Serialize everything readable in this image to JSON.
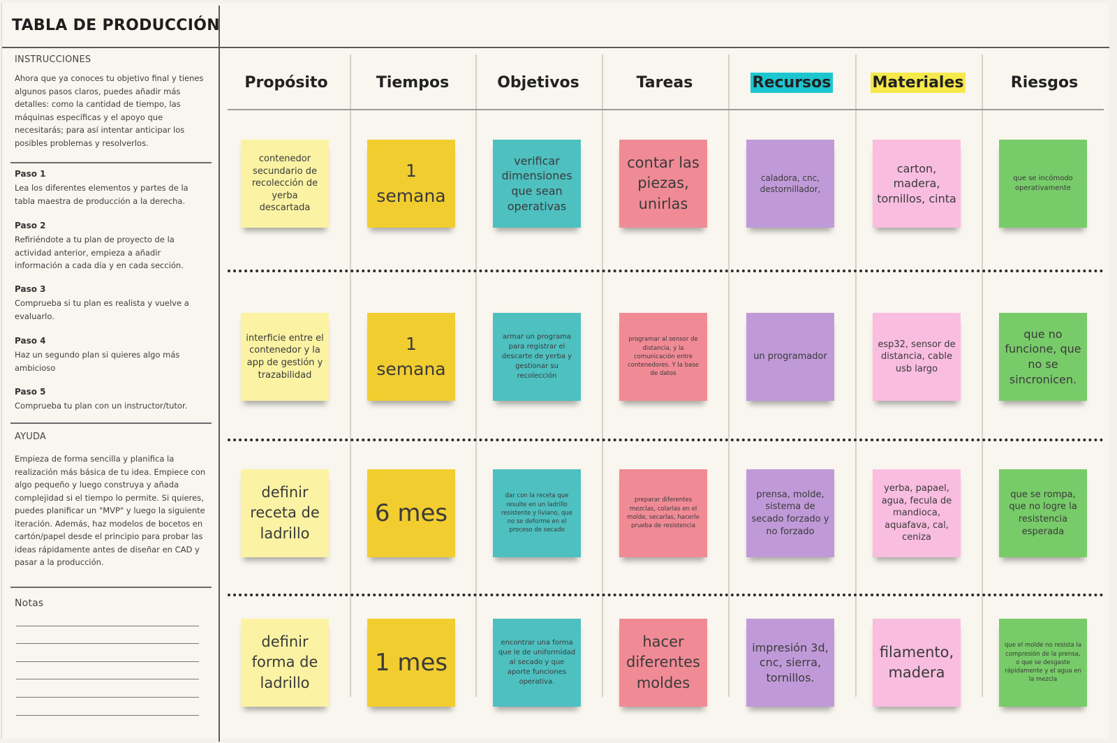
{
  "title": "TABLA DE PRODUCCIÓN",
  "left_panel": {
    "instructions_heading": "INSTRUCCIONES",
    "instructions_text": "Ahora que ya conoces tu objetivo final y tienes algunos pasos claros, puedes añadir más detalles: como la cantidad de tiempo, las máquinas específicas y el apoyo que necesitarás; para así intentar anticipar los posibles problemas y resolverlos.",
    "steps": [
      {
        "title": "Paso 1",
        "text": "Lea los diferentes elementos y partes de la tabla maestra de producción a la derecha."
      },
      {
        "title": "Paso 2",
        "text": "Refiriéndote a tu plan de proyecto de la actividad anterior, empieza a añadir información a cada día y en cada sección."
      },
      {
        "title": "Paso 3",
        "text": "Comprueba si tu plan es realista y vuelve a evaluarlo."
      },
      {
        "title": "Paso 4",
        "text": "Haz un segundo plan si quieres algo más ambicioso"
      },
      {
        "title": "Paso 5",
        "text": "Comprueba tu plan con un instructor/tutor."
      }
    ],
    "help_heading": "AYUDA",
    "help_text": "Empieza de forma sencilla y planifica la realización más básica de tu idea. Empiece con algo pequeño y luego construya y añada complejidad si el tiempo lo permite. Si quieres, puedes planificar un \"MVP\" y luego la siguiente iteración. Además, haz modelos de bocetos en cartón/papel desde el principio para probar las ideas rápidamente antes de diseñar en CAD y pasar a la producción.",
    "notes_heading": "Notas"
  },
  "columns": [
    {
      "label": "Propósito",
      "highlight": ""
    },
    {
      "label": "Tiempos",
      "highlight": ""
    },
    {
      "label": "Objetivos",
      "highlight": ""
    },
    {
      "label": "Tareas",
      "highlight": ""
    },
    {
      "label": "Recursos",
      "highlight": "#1cc6d1"
    },
    {
      "label": "Materiales",
      "highlight": "#f6e94a"
    },
    {
      "label": "Riesgos",
      "highlight": ""
    }
  ],
  "rows": [
    [
      {
        "text": "contenedor secundario de recolección de yerba descartada",
        "color": "yellow-pale"
      },
      {
        "text": "1 semana",
        "color": "yellow"
      },
      {
        "text": "verificar dimensiones que sean operativas",
        "color": "teal"
      },
      {
        "text": "contar las piezas, unirlas",
        "color": "red"
      },
      {
        "text": "caladora, cnc, destornillador,",
        "color": "purple"
      },
      {
        "text": "carton, madera, tornillos, cinta",
        "color": "pink"
      },
      {
        "text": "que se incómodo operativamente",
        "color": "green"
      }
    ],
    [
      {
        "text": "interficie entre el contenedor y la app de gestión y trazabilidad",
        "color": "yellow-pale"
      },
      {
        "text": "1 semana",
        "color": "yellow"
      },
      {
        "text": "armar un programa para registrar el descarte de yerba y gestionar su recolección",
        "color": "teal"
      },
      {
        "text": "programar al sensor de distancia, y la comunicación entre contenedores. Y la base de datos",
        "color": "red"
      },
      {
        "text": "un programador",
        "color": "purple"
      },
      {
        "text": "esp32, sensor de distancia, cable usb largo",
        "color": "pink"
      },
      {
        "text": "que no funcione, que no se sincronicen.",
        "color": "green"
      }
    ],
    [
      {
        "text": "definir receta de ladrillo",
        "color": "yellow-pale"
      },
      {
        "text": "6 mes",
        "color": "yellow"
      },
      {
        "text": "dar con la receta que resulte en un ladrillo resistente y liviano, que no se deforme en el proceso de secado",
        "color": "teal"
      },
      {
        "text": "preparar diferentes mezclas, colarlas en el molde, secarlas, hacerle prueba de resistencia",
        "color": "red"
      },
      {
        "text": "prensa, molde, sistema de secado forzado y no forzado",
        "color": "purple"
      },
      {
        "text": "yerba, papael, agua, fecula de mandioca, aquafava, cal, ceniza",
        "color": "pink"
      },
      {
        "text": "que se rompa, que no logre la resistencia esperada",
        "color": "green"
      }
    ],
    [
      {
        "text": "definir forma de ladrillo",
        "color": "yellow-pale"
      },
      {
        "text": "1 mes",
        "color": "yellow"
      },
      {
        "text": "encontrar una forma que le de uniformidad al secado y que aporte funciones operativa.",
        "color": "teal"
      },
      {
        "text": "hacer diferentes moldes",
        "color": "red"
      },
      {
        "text": "impresión 3d, cnc, sierra, tornillos.",
        "color": "purple"
      },
      {
        "text": "filamento, madera",
        "color": "pink"
      },
      {
        "text": "que el molde no resista la compresión de la prensa, o que se desgaste rápidamente y el agua en la mezcla",
        "color": "green"
      }
    ]
  ]
}
